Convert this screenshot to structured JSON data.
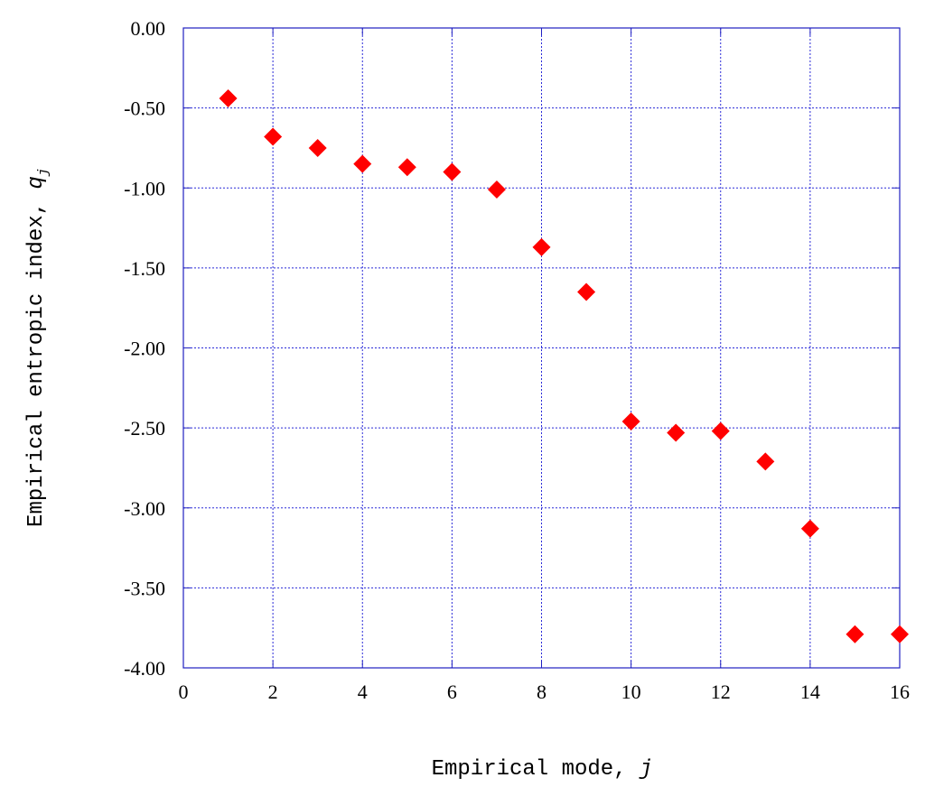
{
  "chart_data": {
    "type": "scatter",
    "title": "",
    "xlabel": "Empirical mode, ",
    "xlabel_symbol": "j",
    "ylabel": "Empirical entropic index, ",
    "ylabel_symbol": "q",
    "ylabel_subscript": "j",
    "xlim": [
      0,
      16
    ],
    "ylim": [
      -4.0,
      0.0
    ],
    "x_ticks": [
      0,
      2,
      4,
      6,
      8,
      10,
      12,
      14,
      16
    ],
    "x_tick_labels": [
      "0",
      "2",
      "4",
      "6",
      "8",
      "10",
      "12",
      "14",
      "16"
    ],
    "y_ticks": [
      0.0,
      -0.5,
      -1.0,
      -1.5,
      -2.0,
      -2.5,
      -3.0,
      -3.5,
      -4.0
    ],
    "y_tick_labels": [
      "0.00",
      "-0.50",
      "-1.00",
      "-1.50",
      "-2.00",
      "-2.50",
      "-3.00",
      "-3.50",
      "-4.00"
    ],
    "grid": true,
    "marker": "diamond",
    "colors": {
      "marker": "#ff0000",
      "grid": "#2a2ad8",
      "frame": "#2020c0"
    },
    "series": [
      {
        "x": [
          1,
          2,
          3,
          4,
          5,
          6,
          7,
          8,
          9,
          10,
          11,
          12,
          13,
          14,
          15,
          16
        ],
        "y": [
          -0.44,
          -0.68,
          -0.75,
          -0.85,
          -0.87,
          -0.9,
          -1.01,
          -1.37,
          -1.65,
          -2.46,
          -2.53,
          -2.52,
          -2.71,
          -3.13,
          -3.79,
          -3.79
        ]
      }
    ]
  }
}
